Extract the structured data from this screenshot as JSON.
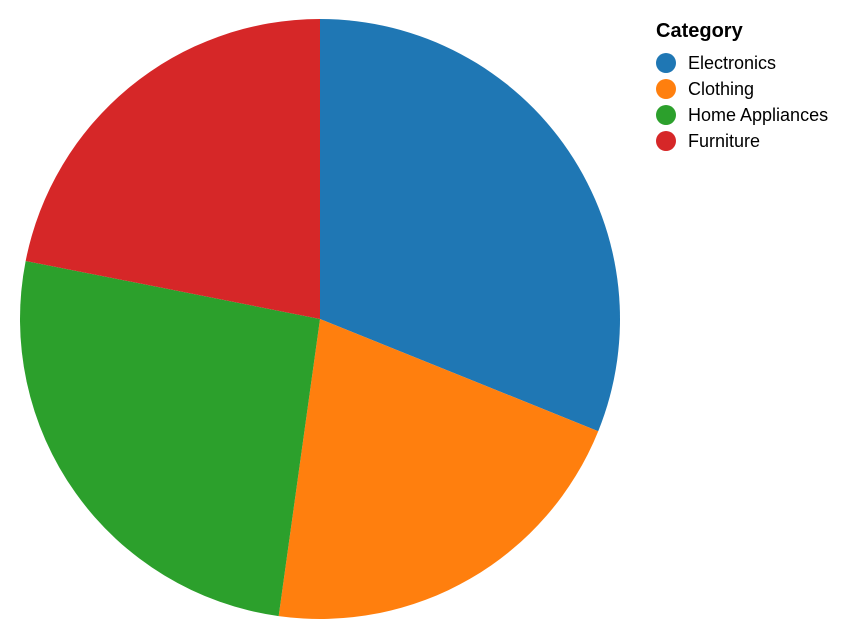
{
  "chart_data": {
    "type": "pie",
    "legend_title": "Category",
    "legend_position": "top-right",
    "categories": [
      "Electronics",
      "Clothing",
      "Home Appliances",
      "Furniture"
    ],
    "values": [
      31.1,
      21.1,
      25.9,
      21.9
    ],
    "colors": [
      "#1f77b4",
      "#ff7f0e",
      "#2ca02c",
      "#d62728"
    ]
  }
}
